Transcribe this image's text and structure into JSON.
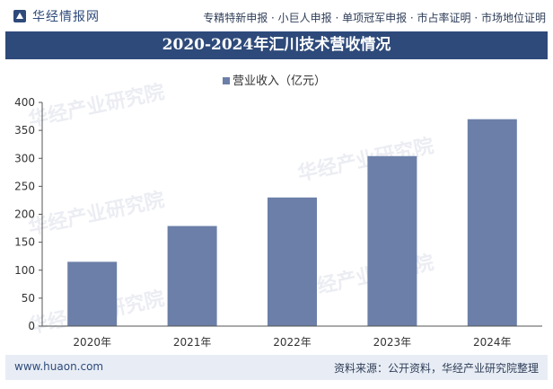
{
  "header": {
    "brand": "华经情报网",
    "links": "专精特新申报 · 小巨人申报 · 单项冠军申报 · 市占率证明 · 市场地位证明"
  },
  "colors": {
    "bar": "#6b7fa8",
    "accent": "#2e4a7a",
    "footer_bg": "#e8edf5"
  },
  "chart_data": {
    "type": "bar",
    "title": "2020-2024年汇川技术营收情况",
    "legend": "营业收入（亿元）",
    "legend_position": "top-center",
    "categories": [
      "2020年",
      "2021年",
      "2022年",
      "2023年",
      "2024年"
    ],
    "values": [
      115,
      179,
      230,
      304,
      370
    ],
    "ylim": [
      0,
      400
    ],
    "yticks": [
      0,
      50,
      100,
      150,
      200,
      250,
      300,
      350,
      400
    ],
    "xlabel": "",
    "ylabel": ""
  },
  "footer": {
    "url": "www.huaon.com",
    "source": "资料来源：公开资料，华经产业研究院整理"
  }
}
